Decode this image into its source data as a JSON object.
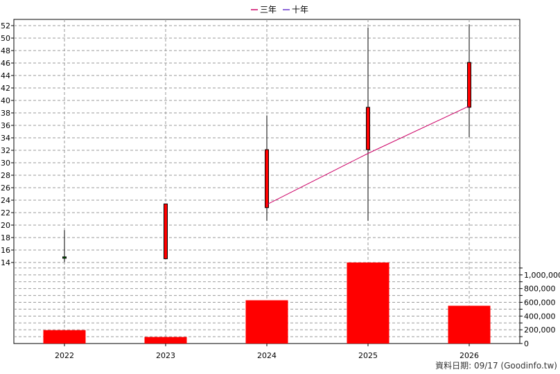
{
  "chart_data": {
    "type": "candlestick",
    "legend": [
      {
        "label": "三年",
        "color": "#cc0066"
      },
      {
        "label": "十年",
        "color": "#6633cc"
      }
    ],
    "legend_position": "top-center",
    "categories": [
      "2022",
      "2023",
      "2024",
      "2025",
      "2026"
    ],
    "price_axis": {
      "ylim": [
        14,
        53
      ],
      "ticks": [
        "14",
        "16",
        "18",
        "20",
        "22",
        "24",
        "26",
        "28",
        "30",
        "32",
        "34",
        "36",
        "38",
        "40",
        "42",
        "44",
        "46",
        "48",
        "50",
        "52"
      ]
    },
    "volume_axis": {
      "ylim": [
        0,
        1180000
      ],
      "ticks": [
        "0",
        "200,000",
        "400,000",
        "600,000",
        "800,000",
        "1,000,000"
      ]
    },
    "grid": true,
    "candles": [
      {
        "year": "2022",
        "open": 14.9,
        "high": 19.2,
        "low": 14.1,
        "close": 14.7,
        "color": "#008000"
      },
      {
        "year": "2023",
        "open": 14.6,
        "high": 23.4,
        "low": 14.6,
        "close": 23.4,
        "color": "#ff0000"
      },
      {
        "year": "2024",
        "open": 22.8,
        "high": 37.6,
        "low": 20.7,
        "close": 32.1,
        "color": "#ff0000"
      },
      {
        "year": "2025",
        "open": 32.1,
        "high": 51.7,
        "low": 20.7,
        "close": 38.9,
        "color": "#ff0000"
      },
      {
        "year": "2026",
        "open": 38.9,
        "high": 52.2,
        "low": 34.1,
        "close": 46.1,
        "color": "#ff0000"
      }
    ],
    "volume": [
      195000,
      95000,
      630000,
      1180000,
      550000
    ],
    "series": [
      {
        "name": "三年",
        "color": "#cc0066",
        "points": [
          {
            "x": "2024",
            "y": 23.3
          },
          {
            "x": "2025",
            "y": 31.5
          },
          {
            "x": "2026",
            "y": 39.1
          }
        ]
      }
    ],
    "footer": "資料日期: 09/17  (Goodinfo.tw)"
  }
}
